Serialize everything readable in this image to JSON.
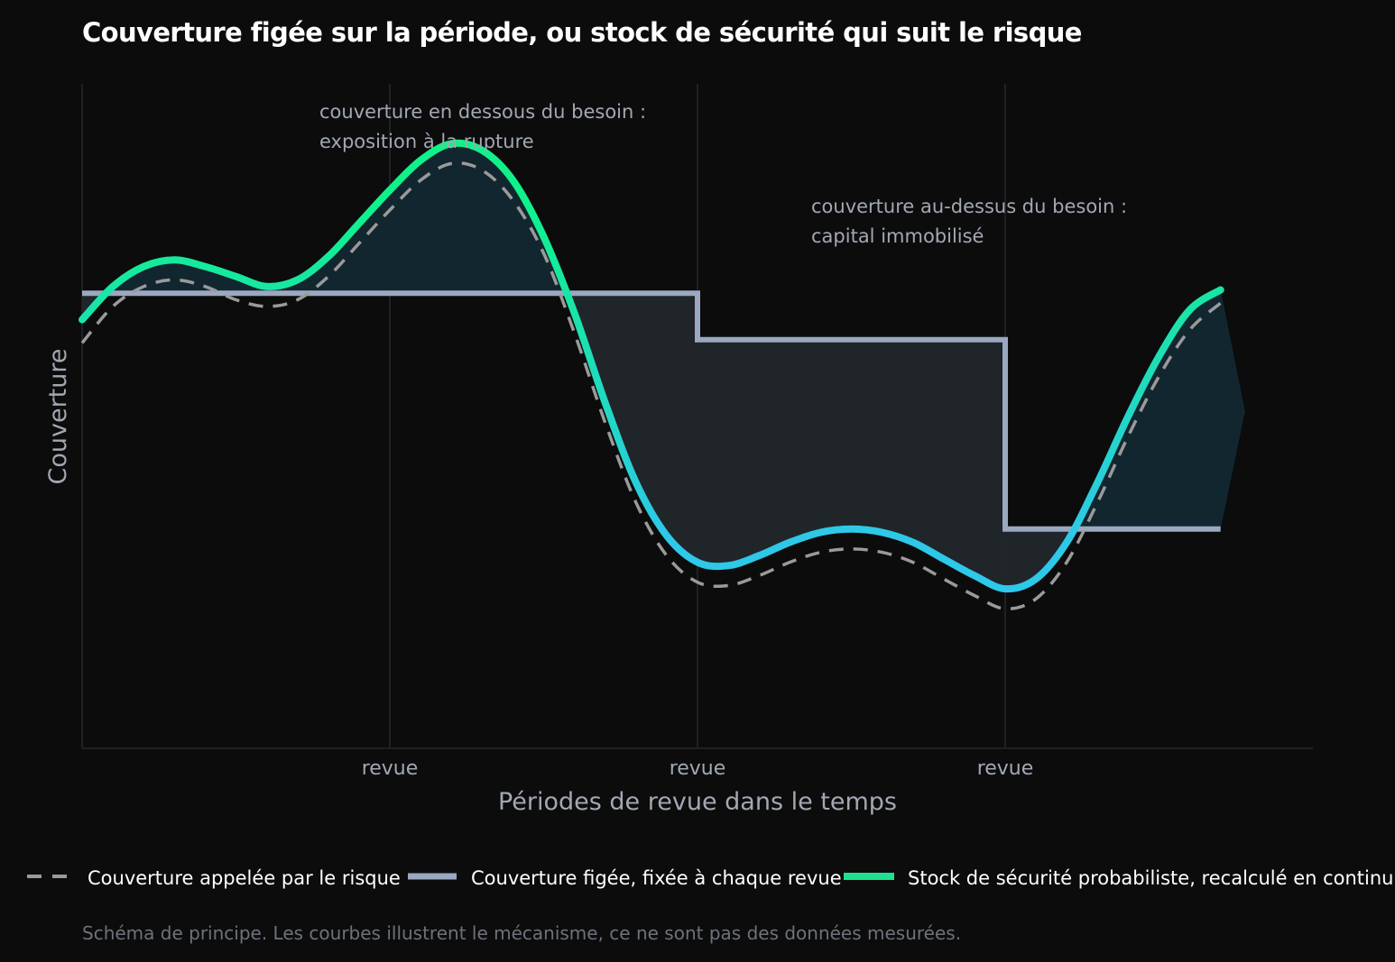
{
  "chart_data": {
    "type": "line",
    "title": "Couverture figée sur la période, ou stock de sécurité qui suit le risque",
    "xlabel": "Périodes de revue dans le temps",
    "ylabel": "Couverture",
    "xlim": [
      0,
      4
    ],
    "ylim": [
      0,
      1
    ],
    "x_ticks": [
      {
        "x": 1,
        "label": "revue"
      },
      {
        "x": 2,
        "label": "revue"
      },
      {
        "x": 3,
        "label": "revue"
      }
    ],
    "grid": "vertical lines at each review",
    "series": [
      {
        "name": "Couverture appelée par le risque",
        "style": "dashed",
        "color": "#9a9a9a",
        "x": [
          0,
          0.1,
          0.2,
          0.3,
          0.4,
          0.5,
          0.6,
          0.7,
          0.8,
          0.9,
          1.0,
          1.1,
          1.2,
          1.3,
          1.4,
          1.5,
          1.6,
          1.7,
          1.8,
          1.9,
          2.0,
          2.1,
          2.2,
          2.3,
          2.4,
          2.5,
          2.6,
          2.7,
          2.8,
          2.9,
          3.0,
          3.1,
          3.2,
          3.3,
          3.4,
          3.5,
          3.6,
          3.7
        ],
        "values": [
          0.61,
          0.665,
          0.695,
          0.705,
          0.695,
          0.675,
          0.665,
          0.675,
          0.71,
          0.76,
          0.81,
          0.855,
          0.88,
          0.87,
          0.825,
          0.745,
          0.625,
          0.49,
          0.37,
          0.29,
          0.25,
          0.245,
          0.26,
          0.28,
          0.295,
          0.3,
          0.295,
          0.28,
          0.255,
          0.23,
          0.21,
          0.225,
          0.28,
          0.37,
          0.47,
          0.56,
          0.63,
          0.67
        ]
      },
      {
        "name": "Couverture figée, fixée à chaque revue",
        "style": "step",
        "color": "#9aa8c0",
        "x": [
          0,
          2,
          2,
          3,
          3,
          3.7
        ],
        "values": [
          0.685,
          0.685,
          0.615,
          0.615,
          0.33,
          0.33
        ]
      },
      {
        "name": "Stock de sécurité probabiliste, recalculé en continu",
        "style": "solid gradient",
        "color": "#1ee08f",
        "gradient": [
          "#0ff28a",
          "#2ec8e8"
        ],
        "x": [
          0,
          0.1,
          0.2,
          0.3,
          0.4,
          0.5,
          0.6,
          0.7,
          0.8,
          0.9,
          1.0,
          1.1,
          1.2,
          1.3,
          1.4,
          1.5,
          1.6,
          1.7,
          1.8,
          1.9,
          2.0,
          2.1,
          2.2,
          2.3,
          2.4,
          2.5,
          2.6,
          2.7,
          2.8,
          2.9,
          3.0,
          3.1,
          3.2,
          3.3,
          3.4,
          3.5,
          3.6,
          3.7
        ],
        "values": [
          0.645,
          0.695,
          0.725,
          0.735,
          0.725,
          0.71,
          0.695,
          0.705,
          0.74,
          0.79,
          0.84,
          0.885,
          0.91,
          0.9,
          0.855,
          0.77,
          0.655,
          0.52,
          0.4,
          0.32,
          0.28,
          0.275,
          0.29,
          0.31,
          0.325,
          0.33,
          0.325,
          0.31,
          0.285,
          0.26,
          0.24,
          0.255,
          0.31,
          0.4,
          0.5,
          0.59,
          0.66,
          0.69
        ]
      }
    ],
    "annotations": [
      {
        "lines": [
          "couverture en dessous du besoin :",
          "exposition à la rupture"
        ]
      },
      {
        "lines": [
          "couverture au-dessus du besoin :",
          "capital immobilisé"
        ]
      }
    ],
    "legend_placement": "bottom",
    "note": "Schéma de principe. Les courbes illustrent le mécanisme, ce ne sont pas des données mesurées."
  }
}
